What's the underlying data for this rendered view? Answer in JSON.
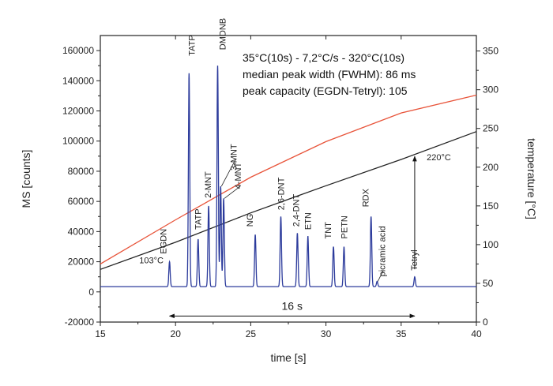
{
  "chart_data": {
    "type": "line",
    "xlabel": "time [s]",
    "ylabel": "MS [counts]",
    "y2label": "temperature [°C]",
    "xlim": [
      15,
      40
    ],
    "ylim": [
      -20000,
      170000
    ],
    "y2lim": [
      0,
      370
    ],
    "x_ticks": [
      15,
      20,
      25,
      30,
      35,
      40
    ],
    "y_ticks": [
      -20000,
      0,
      20000,
      40000,
      60000,
      80000,
      100000,
      120000,
      140000,
      160000
    ],
    "y2_ticks": [
      0,
      50,
      100,
      150,
      200,
      250,
      300,
      350
    ],
    "header_lines": [
      "35°C(10s) - 7,2°C/s - 320°C(10s)",
      "median peak width (FWHM): 86 ms",
      "peak capacity (EGDN-Tetryl): 105"
    ],
    "baseline": 3500,
    "peaks": [
      {
        "label": "EGDN",
        "x": 19.6,
        "height": 20000
      },
      {
        "label": "TATP",
        "x": 20.9,
        "height": 145000
      },
      {
        "label": "TATP",
        "x": 21.5,
        "height": 35000
      },
      {
        "label": "2-MNT",
        "x": 22.2,
        "height": 57000
      },
      {
        "label": "DMDNB",
        "x": 22.8,
        "height": 150000
      },
      {
        "label": "3-MNT",
        "x": 23.0,
        "height": 70000
      },
      {
        "label": "4-MNT",
        "x": 23.2,
        "height": 62000
      },
      {
        "label": "NG",
        "x": 25.3,
        "height": 38000
      },
      {
        "label": "2,6-DNT",
        "x": 27.0,
        "height": 50000
      },
      {
        "label": "2,4-DNT",
        "x": 28.1,
        "height": 39000
      },
      {
        "label": "ETN",
        "x": 28.8,
        "height": 37000
      },
      {
        "label": "TNT",
        "x": 30.5,
        "height": 30000
      },
      {
        "label": "PETN",
        "x": 31.2,
        "height": 30000
      },
      {
        "label": "RDX",
        "x": 33.0,
        "height": 50000
      },
      {
        "label": "picramic acid",
        "x": 33.4,
        "height": 7000
      },
      {
        "label": "Tetryl",
        "x": 35.9,
        "height": 10000
      }
    ],
    "series": [
      {
        "color": "#2c3b9c",
        "axis": "left"
      },
      {
        "color": "#e8543a",
        "axis": "right",
        "x": [
          15,
          20,
          25,
          30,
          35,
          40
        ],
        "values": [
          75,
          132,
          187,
          233,
          270,
          293
        ]
      },
      {
        "color": "#222222",
        "axis": "right",
        "x": [
          15,
          20,
          25,
          30,
          35,
          40
        ],
        "values": [
          68,
          103,
          141,
          176,
          210,
          246
        ]
      }
    ],
    "annotations": {
      "temp_start_label": "103°C",
      "temp_end_label": "220°C",
      "span_label": "16 s",
      "span_x": [
        19.6,
        35.9
      ]
    }
  }
}
